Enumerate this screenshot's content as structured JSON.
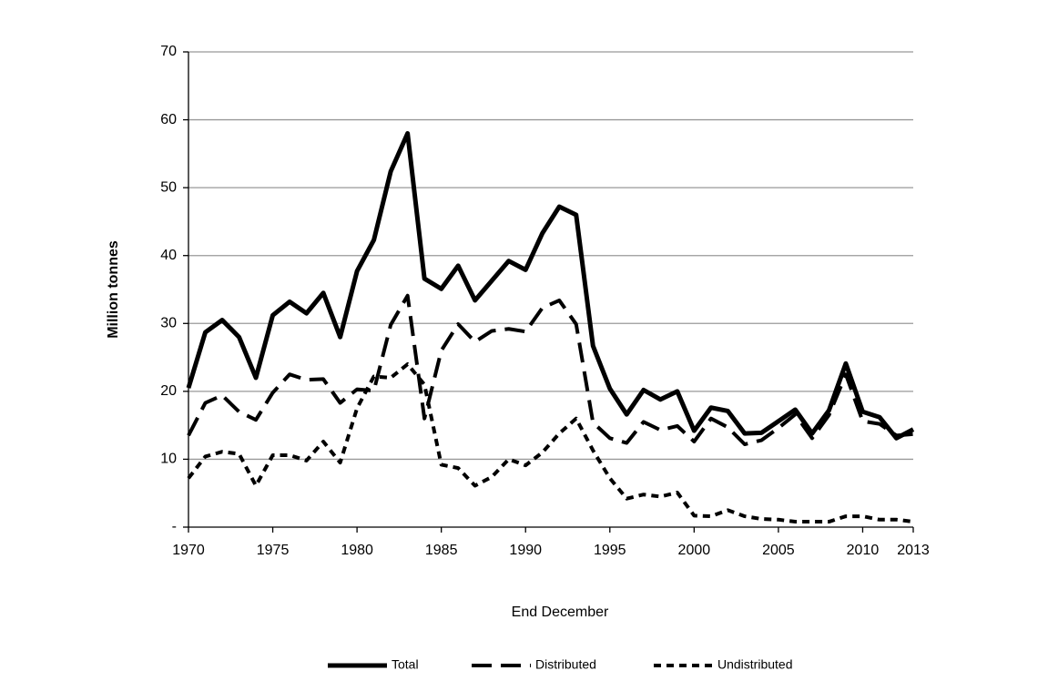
{
  "chart_data": {
    "type": "line",
    "x_label": "End December",
    "y_label": "Million tonnes",
    "x": [
      1970,
      1971,
      1972,
      1973,
      1974,
      1975,
      1976,
      1977,
      1978,
      1979,
      1980,
      1981,
      1982,
      1983,
      1984,
      1985,
      1986,
      1987,
      1988,
      1989,
      1990,
      1991,
      1992,
      1993,
      1994,
      1995,
      1996,
      1997,
      1998,
      1999,
      2000,
      2001,
      2002,
      2003,
      2004,
      2005,
      2006,
      2007,
      2008,
      2009,
      2010,
      2011,
      2012,
      2013
    ],
    "series": [
      {
        "name": "Total",
        "color": "#000000",
        "dash": "none",
        "width": 5,
        "values": [
          20.5,
          28.7,
          30.5,
          28,
          22,
          31.2,
          33.2,
          31.5,
          34.5,
          28,
          37.7,
          42.3,
          52.4,
          58,
          36.6,
          35.1,
          38.5,
          33.4,
          36.3,
          39.2,
          37.9,
          43.3,
          47.2,
          46,
          26.7,
          20.4,
          16.6,
          20.2,
          18.8,
          20,
          14.2,
          17.6,
          17.1,
          13.8,
          13.9,
          15.6,
          17.3,
          13.8,
          17.2,
          24.1,
          17,
          16.2,
          13.1,
          14.4
        ]
      },
      {
        "name": "Distributed",
        "color": "#000000",
        "dash": "22 10",
        "width": 4,
        "values": [
          13.5,
          18.3,
          19.4,
          17,
          15.8,
          19.8,
          22.5,
          21.7,
          21.8,
          18.3,
          20.3,
          20.1,
          29.8,
          34.1,
          16,
          26,
          29.9,
          27.3,
          28.9,
          29.2,
          28.8,
          32.3,
          33.4,
          29.9,
          15.4,
          13.1,
          12.4,
          15.5,
          14.3,
          14.9,
          12.6,
          16,
          14.7,
          12.2,
          12.8,
          14.6,
          16.6,
          13.1,
          16.5,
          22.5,
          15.6,
          15.2,
          13.5,
          13.7
        ]
      },
      {
        "name": "Undistributed",
        "color": "#000000",
        "dash": "8 6",
        "width": 4,
        "values": [
          7.2,
          10.4,
          11.1,
          10.8,
          6.1,
          10.6,
          10.6,
          9.8,
          12.6,
          9.5,
          17.5,
          22.2,
          22,
          24,
          21,
          9.2,
          8.7,
          6.1,
          7.4,
          10,
          9.1,
          11,
          13.8,
          16,
          11.3,
          7.2,
          4.2,
          4.8,
          4.5,
          5.1,
          1.7,
          1.6,
          2.5,
          1.6,
          1.2,
          1.1,
          0.8,
          0.8,
          0.8,
          1.6,
          1.6,
          1.1,
          1.1,
          0.8
        ]
      }
    ],
    "xlim": [
      1970,
      2013
    ],
    "xticks": [
      1970,
      1975,
      1980,
      1985,
      1990,
      1995,
      2000,
      2005,
      2010,
      2013
    ],
    "ylim": [
      0,
      70
    ],
    "yticks": [
      {
        "value": 0,
        "label": "-"
      },
      10,
      20,
      30,
      40,
      50,
      60,
      70
    ],
    "grid": true,
    "legend": "bottom"
  }
}
